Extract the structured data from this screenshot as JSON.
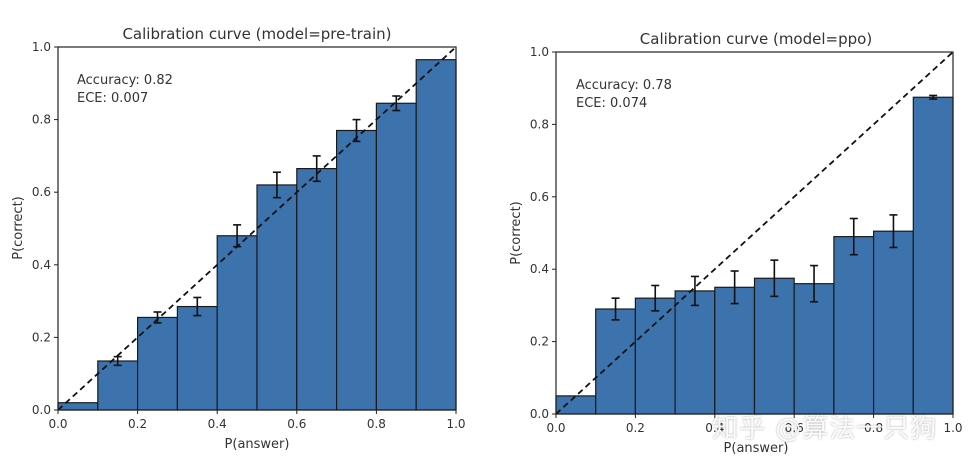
{
  "colors": {
    "bar": "#3d73ad",
    "edge": "#1a1a1a",
    "diagonal": "#111111",
    "axis": "#222222"
  },
  "watermark": "知乎 @算法一只狗",
  "chart_data": [
    {
      "type": "bar",
      "title": "Calibration curve (model=pre-train)",
      "xlabel": "P(answer)",
      "ylabel": "P(correct)",
      "xlim": [
        0,
        1
      ],
      "ylim": [
        0,
        1
      ],
      "xticks": [
        "0.0",
        "0.2",
        "0.4",
        "0.6",
        "0.8",
        "1.0"
      ],
      "yticks": [
        "0.0",
        "0.2",
        "0.4",
        "0.6",
        "0.8",
        "1.0"
      ],
      "bin_edges": [
        0,
        0.1,
        0.2,
        0.3,
        0.4,
        0.5,
        0.6,
        0.7,
        0.8,
        0.9,
        1.0
      ],
      "values": [
        0.02,
        0.135,
        0.255,
        0.285,
        0.48,
        0.62,
        0.665,
        0.77,
        0.845,
        0.965
      ],
      "errors": [
        null,
        0.012,
        0.015,
        0.025,
        0.03,
        0.035,
        0.035,
        0.03,
        0.02,
        null
      ],
      "diagonal": true,
      "annotation": [
        "Accuracy: 0.82",
        "ECE: 0.007"
      ]
    },
    {
      "type": "bar",
      "title": "Calibration curve (model=ppo)",
      "xlabel": "P(answer)",
      "ylabel": "P(correct)",
      "xlim": [
        0,
        1
      ],
      "ylim": [
        0,
        1
      ],
      "xticks": [
        "0.0",
        "0.2",
        "0.4",
        "0.6",
        "0.8",
        "1.0"
      ],
      "yticks": [
        "0.0",
        "0.2",
        "0.4",
        "0.6",
        "0.8",
        "1.0"
      ],
      "bin_edges": [
        0,
        0.1,
        0.2,
        0.3,
        0.4,
        0.5,
        0.6,
        0.7,
        0.8,
        0.9,
        1.0
      ],
      "values": [
        0.05,
        0.29,
        0.32,
        0.34,
        0.35,
        0.375,
        0.36,
        0.49,
        0.505,
        0.875
      ],
      "errors": [
        null,
        0.03,
        0.035,
        0.04,
        0.045,
        0.05,
        0.05,
        0.05,
        0.045,
        0.005
      ],
      "diagonal": true,
      "annotation": [
        "Accuracy: 0.78",
        "ECE: 0.074"
      ]
    }
  ]
}
